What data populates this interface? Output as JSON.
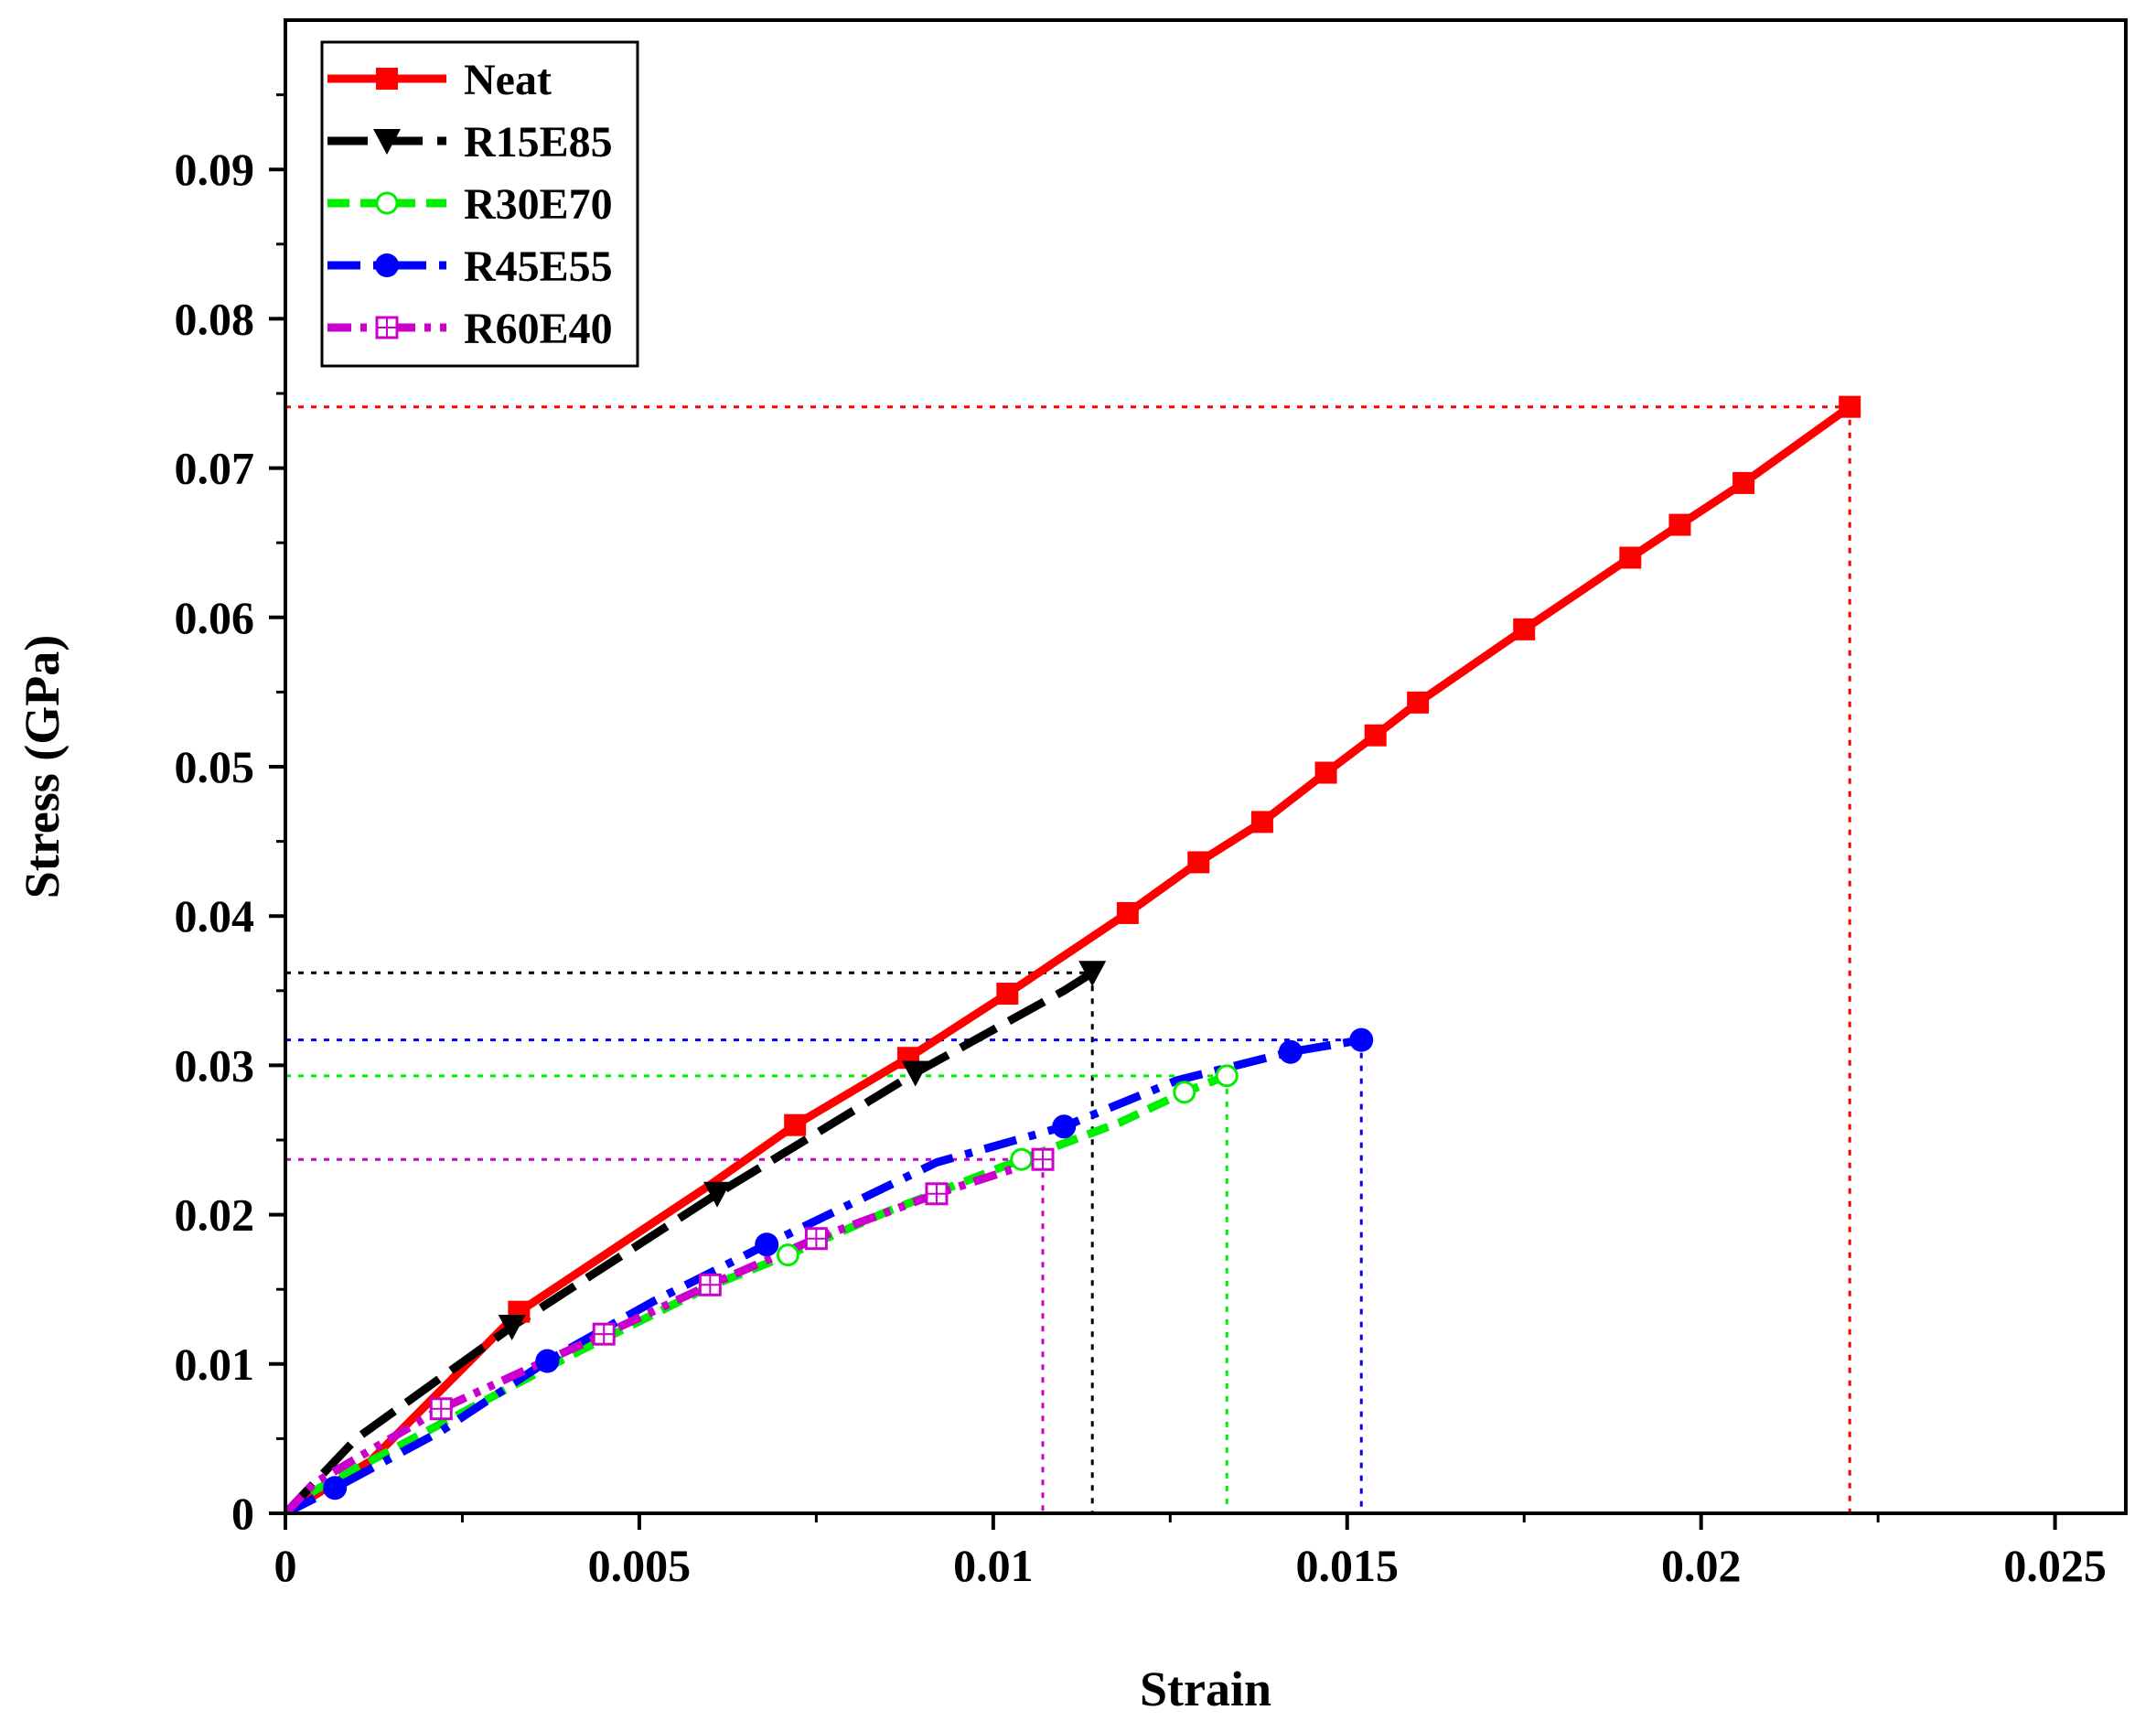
{
  "chart_data": {
    "type": "line",
    "title": "",
    "xlabel": "Strain",
    "ylabel": "Stress (GPa)",
    "xlim": [
      0,
      0.026
    ],
    "ylim": [
      0,
      0.1
    ],
    "x_ticks": [
      0,
      0.005,
      0.01,
      0.015,
      0.02,
      0.025
    ],
    "x_tick_labels": [
      "0",
      "0.005",
      "0.01",
      "0.015",
      "0.02",
      "0.025"
    ],
    "y_ticks": [
      0,
      0.01,
      0.02,
      0.03,
      0.04,
      0.05,
      0.06,
      0.07,
      0.08,
      0.09
    ],
    "y_tick_labels": [
      "0",
      "0.01",
      "0.02",
      "0.03",
      "0.04",
      "0.05",
      "0.06",
      "0.07",
      "0.08",
      "0.09"
    ],
    "grid": false,
    "legend_position": "top-left",
    "series": [
      {
        "name": "Neat",
        "color": "#ff0000",
        "marker": "square",
        "line_style": "solid",
        "points": [
          [
            0,
            0
          ],
          [
            0.0012,
            0.0035
          ],
          [
            0.0033,
            0.0135
          ],
          [
            0.006,
            0.022
          ],
          [
            0.0072,
            0.026
          ],
          [
            0.0088,
            0.0305
          ],
          [
            0.0102,
            0.0348
          ],
          [
            0.0119,
            0.0402
          ],
          [
            0.0129,
            0.0436
          ],
          [
            0.0138,
            0.0463
          ],
          [
            0.0147,
            0.0496
          ],
          [
            0.0154,
            0.0521
          ],
          [
            0.016,
            0.0543
          ],
          [
            0.0175,
            0.0592
          ],
          [
            0.019,
            0.064
          ],
          [
            0.0197,
            0.0662
          ],
          [
            0.0206,
            0.069
          ],
          [
            0.0221,
            0.0741
          ]
        ],
        "markers": [
          [
            0.0033,
            0.0135
          ],
          [
            0.0072,
            0.026
          ],
          [
            0.0088,
            0.0305
          ],
          [
            0.0102,
            0.0348
          ],
          [
            0.0119,
            0.0402
          ],
          [
            0.0129,
            0.0436
          ],
          [
            0.0138,
            0.0463
          ],
          [
            0.0147,
            0.0496
          ],
          [
            0.0154,
            0.0521
          ],
          [
            0.016,
            0.0543
          ],
          [
            0.0175,
            0.0592
          ],
          [
            0.019,
            0.064
          ],
          [
            0.0197,
            0.0662
          ],
          [
            0.0206,
            0.069
          ],
          [
            0.0221,
            0.0741
          ]
        ],
        "max_point": [
          0.0221,
          0.0741
        ]
      },
      {
        "name": "R15E85",
        "color": "#000000",
        "marker": "triangle-down",
        "line_style": "dash",
        "points": [
          [
            0,
            0
          ],
          [
            0.001,
            0.005
          ],
          [
            0.0032,
            0.0125
          ],
          [
            0.0061,
            0.0214
          ],
          [
            0.0089,
            0.0295
          ],
          [
            0.011,
            0.035
          ],
          [
            0.0114,
            0.0362
          ]
        ],
        "markers": [
          [
            0.0032,
            0.0125
          ],
          [
            0.0061,
            0.0214
          ],
          [
            0.0089,
            0.0295
          ],
          [
            0.0114,
            0.0362
          ]
        ],
        "max_point": [
          0.0114,
          0.0362
        ]
      },
      {
        "name": "R30E70",
        "color": "#00ee00",
        "marker": "circle-open",
        "line_style": "short-dash",
        "points": [
          [
            0,
            0
          ],
          [
            0.0004,
            0.0015
          ],
          [
            0.0018,
            0.005
          ],
          [
            0.004,
            0.0105
          ],
          [
            0.006,
            0.0152
          ],
          [
            0.0071,
            0.0173
          ],
          [
            0.0085,
            0.0202
          ],
          [
            0.0104,
            0.0237
          ],
          [
            0.0118,
            0.0262
          ],
          [
            0.0127,
            0.0282
          ],
          [
            0.0133,
            0.0293
          ]
        ],
        "markers": [
          [
            0.0071,
            0.0173
          ],
          [
            0.0104,
            0.0237
          ],
          [
            0.0127,
            0.0282
          ],
          [
            0.0133,
            0.0293
          ]
        ],
        "max_point": [
          0.0133,
          0.0293
        ]
      },
      {
        "name": "R45E55",
        "color": "#0000ff",
        "marker": "circle-filled",
        "line_style": "dash-dot",
        "points": [
          [
            0,
            0
          ],
          [
            0.0007,
            0.0017
          ],
          [
            0.0022,
            0.0055
          ],
          [
            0.0037,
            0.0102
          ],
          [
            0.0052,
            0.0142
          ],
          [
            0.0068,
            0.018
          ],
          [
            0.0092,
            0.0235
          ],
          [
            0.011,
            0.0259
          ],
          [
            0.0126,
            0.029
          ],
          [
            0.0142,
            0.0309
          ],
          [
            0.0152,
            0.0317
          ]
        ],
        "markers": [
          [
            0.0007,
            0.0017
          ],
          [
            0.0037,
            0.0102
          ],
          [
            0.0068,
            0.018
          ],
          [
            0.011,
            0.0259
          ],
          [
            0.0142,
            0.0309
          ],
          [
            0.0152,
            0.0317
          ]
        ],
        "max_point": [
          0.0152,
          0.0317
        ]
      },
      {
        "name": "R60E40",
        "color": "#cc00cc",
        "marker": "square-cross-open",
        "line_style": "dash-dot-dot",
        "points": [
          [
            0,
            0
          ],
          [
            0.0004,
            0.002
          ],
          [
            0.0022,
            0.007
          ],
          [
            0.0045,
            0.012
          ],
          [
            0.006,
            0.0153
          ],
          [
            0.0075,
            0.0184
          ],
          [
            0.0092,
            0.0214
          ],
          [
            0.0107,
            0.0237
          ]
        ],
        "markers": [
          [
            0.0022,
            0.007
          ],
          [
            0.0045,
            0.012
          ],
          [
            0.006,
            0.0153
          ],
          [
            0.0075,
            0.0184
          ],
          [
            0.0092,
            0.0214
          ],
          [
            0.0107,
            0.0237
          ]
        ],
        "max_point": [
          0.0107,
          0.0237
        ]
      }
    ]
  }
}
